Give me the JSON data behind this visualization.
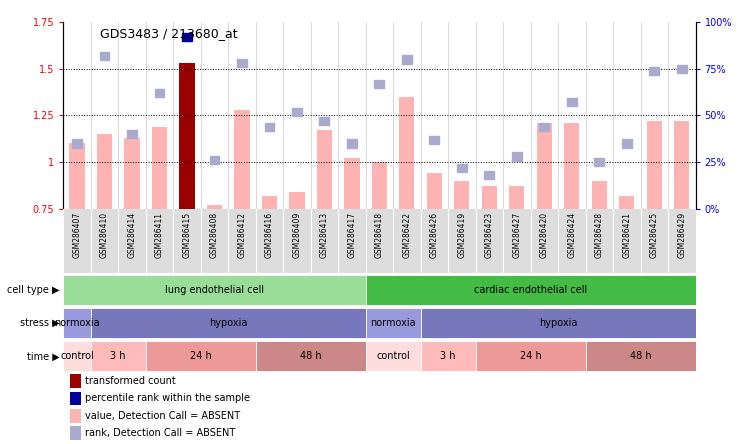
{
  "title": "GDS3483 / 213680_at",
  "samples": [
    "GSM286407",
    "GSM286410",
    "GSM286414",
    "GSM286411",
    "GSM286415",
    "GSM286408",
    "GSM286412",
    "GSM286416",
    "GSM286409",
    "GSM286413",
    "GSM286417",
    "GSM286418",
    "GSM286422",
    "GSM286426",
    "GSM286419",
    "GSM286423",
    "GSM286427",
    "GSM286420",
    "GSM286424",
    "GSM286428",
    "GSM286421",
    "GSM286425",
    "GSM286429"
  ],
  "bar_values": [
    1.1,
    1.15,
    1.13,
    1.19,
    1.53,
    0.77,
    1.28,
    0.82,
    0.84,
    1.17,
    1.02,
    1.0,
    1.35,
    0.94,
    0.9,
    0.87,
    0.87,
    1.21,
    1.21,
    0.9,
    0.82,
    1.22,
    1.22
  ],
  "rank_values": [
    35,
    82,
    40,
    62,
    92,
    26,
    78,
    44,
    52,
    47,
    35,
    67,
    80,
    37,
    22,
    18,
    28,
    44,
    57,
    25,
    35,
    74,
    75
  ],
  "highlight_bar_idx": 4,
  "highlight_rank_idx": 4,
  "ylim_left": [
    0.75,
    1.75
  ],
  "ylim_right": [
    0,
    100
  ],
  "yticks_left": [
    0.75,
    1.0,
    1.25,
    1.5,
    1.75
  ],
  "yticks_right": [
    0,
    25,
    50,
    75,
    100
  ],
  "ytick_labels_left": [
    "0.75",
    "1",
    "1.25",
    "1.5",
    "1.75"
  ],
  "ytick_labels_right": [
    "0%",
    "25%",
    "50%",
    "75%",
    "100%"
  ],
  "hlines": [
    1.0,
    1.25,
    1.5
  ],
  "bar_color_normal": "#ffb3b3",
  "bar_color_highlight": "#990000",
  "rank_color_normal": "#aaaacc",
  "rank_color_highlight": "#000099",
  "cell_type_groups": [
    {
      "label": "lung endothelial cell",
      "start": 0,
      "end": 10,
      "color": "#99dd99"
    },
    {
      "label": "cardiac endothelial cell",
      "start": 11,
      "end": 22,
      "color": "#44bb44"
    }
  ],
  "stress_groups": [
    {
      "label": "normoxia",
      "start": 0,
      "end": 0,
      "color": "#9999dd"
    },
    {
      "label": "hypoxia",
      "start": 1,
      "end": 10,
      "color": "#7777bb"
    },
    {
      "label": "normoxia",
      "start": 11,
      "end": 12,
      "color": "#9999dd"
    },
    {
      "label": "hypoxia",
      "start": 13,
      "end": 22,
      "color": "#7777bb"
    }
  ],
  "time_groups": [
    {
      "label": "control",
      "start": 0,
      "end": 0,
      "color": "#ffdddd"
    },
    {
      "label": "3 h",
      "start": 1,
      "end": 2,
      "color": "#ffbbbb"
    },
    {
      "label": "24 h",
      "start": 3,
      "end": 6,
      "color": "#ee9999"
    },
    {
      "label": "48 h",
      "start": 7,
      "end": 10,
      "color": "#cc8888"
    },
    {
      "label": "control",
      "start": 11,
      "end": 12,
      "color": "#ffdddd"
    },
    {
      "label": "3 h",
      "start": 13,
      "end": 14,
      "color": "#ffbbbb"
    },
    {
      "label": "24 h",
      "start": 15,
      "end": 18,
      "color": "#ee9999"
    },
    {
      "label": "48 h",
      "start": 19,
      "end": 22,
      "color": "#cc8888"
    }
  ],
  "legend_items": [
    {
      "label": "transformed count",
      "color": "#990000"
    },
    {
      "label": "percentile rank within the sample",
      "color": "#000099"
    },
    {
      "label": "value, Detection Call = ABSENT",
      "color": "#ffb3b3"
    },
    {
      "label": "rank, Detection Call = ABSENT",
      "color": "#aaaacc"
    }
  ],
  "row_labels": [
    "cell type",
    "stress",
    "time"
  ],
  "background_color": "#ffffff",
  "fig_width": 7.44,
  "fig_height": 4.44,
  "dpi": 100
}
